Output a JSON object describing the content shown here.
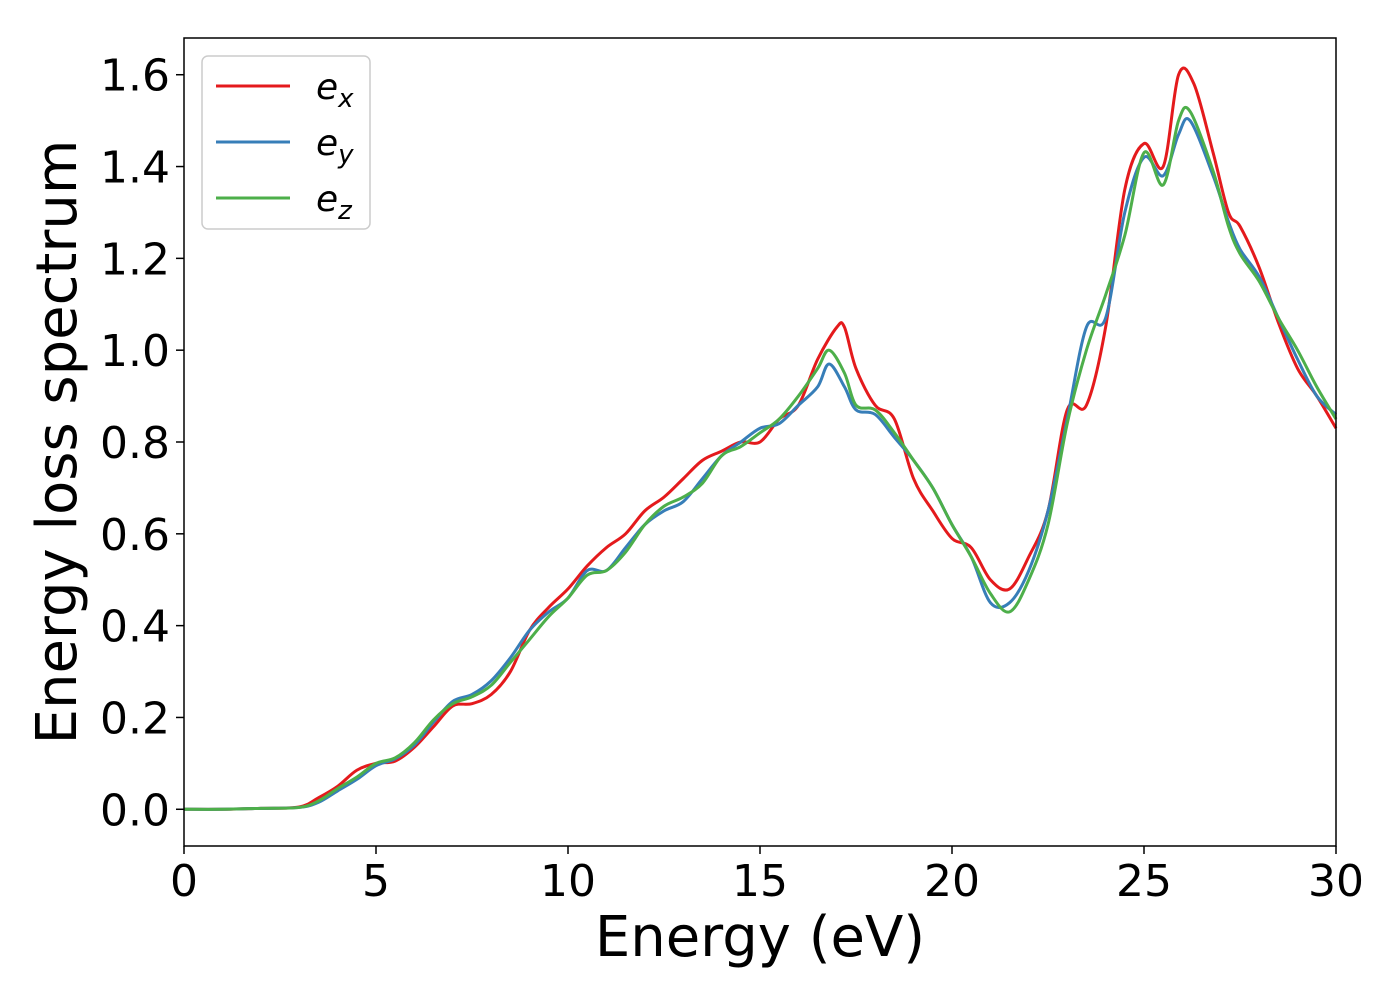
{
  "chart_data": {
    "type": "line",
    "title": "",
    "xlabel": "Energy (eV)",
    "ylabel": "Energy loss spectrum",
    "xlim": [
      0,
      30
    ],
    "ylim": [
      -0.08,
      1.68
    ],
    "xticks": [
      0,
      5,
      10,
      15,
      20,
      25,
      30
    ],
    "yticks": [
      0.0,
      0.2,
      0.4,
      0.6,
      0.8,
      1.0,
      1.2,
      1.4,
      1.6
    ],
    "grid": false,
    "legend_position": "top-left",
    "series": [
      {
        "name": "e",
        "subscript": "x",
        "color": "#e41a1c",
        "x": [
          0,
          1,
          2,
          3,
          3.5,
          4,
          4.5,
          5,
          5.5,
          6,
          6.5,
          7,
          7.5,
          8,
          8.5,
          9,
          9.5,
          10,
          10.5,
          11,
          11.5,
          12,
          12.5,
          13,
          13.5,
          14,
          14.5,
          15,
          15.5,
          16,
          16.5,
          17,
          17.2,
          17.5,
          18,
          18.5,
          19,
          19.5,
          20,
          20.5,
          21,
          21.5,
          22,
          22.5,
          23,
          23.5,
          24,
          24.5,
          25,
          25.5,
          25.9,
          26.3,
          26.8,
          27.2,
          27.5,
          28,
          28.5,
          29,
          29.5,
          30
        ],
        "values": [
          0.0,
          0.0,
          0.002,
          0.005,
          0.025,
          0.05,
          0.085,
          0.1,
          0.105,
          0.135,
          0.18,
          0.225,
          0.23,
          0.25,
          0.3,
          0.39,
          0.44,
          0.48,
          0.53,
          0.57,
          0.6,
          0.65,
          0.68,
          0.72,
          0.76,
          0.78,
          0.8,
          0.8,
          0.85,
          0.88,
          0.98,
          1.05,
          1.05,
          0.96,
          0.88,
          0.85,
          0.72,
          0.65,
          0.59,
          0.57,
          0.5,
          0.48,
          0.55,
          0.65,
          0.87,
          0.88,
          1.05,
          1.35,
          1.45,
          1.4,
          1.6,
          1.58,
          1.43,
          1.3,
          1.27,
          1.18,
          1.06,
          0.96,
          0.9,
          0.83
        ]
      },
      {
        "name": "e",
        "subscript": "y",
        "color": "#377eb8",
        "x": [
          0,
          1,
          2,
          3,
          3.5,
          4,
          4.5,
          5,
          5.5,
          6,
          6.5,
          7,
          7.5,
          8,
          8.5,
          9,
          9.5,
          10,
          10.5,
          11,
          11.5,
          12,
          12.5,
          13,
          13.5,
          14,
          14.5,
          15,
          15.5,
          16,
          16.5,
          16.8,
          17.2,
          17.5,
          18,
          18.5,
          19,
          19.5,
          20,
          20.5,
          21,
          21.5,
          22,
          22.5,
          23,
          23.5,
          24,
          24.5,
          25,
          25.5,
          25.9,
          26.2,
          26.8,
          27.2,
          27.5,
          28,
          28.5,
          29,
          29.5,
          30
        ],
        "values": [
          0.0,
          0.0,
          0.002,
          0.004,
          0.015,
          0.04,
          0.065,
          0.095,
          0.11,
          0.14,
          0.19,
          0.235,
          0.25,
          0.28,
          0.33,
          0.39,
          0.43,
          0.46,
          0.52,
          0.52,
          0.57,
          0.62,
          0.65,
          0.67,
          0.72,
          0.77,
          0.8,
          0.83,
          0.84,
          0.88,
          0.92,
          0.97,
          0.92,
          0.87,
          0.86,
          0.81,
          0.76,
          0.7,
          0.62,
          0.55,
          0.45,
          0.45,
          0.52,
          0.65,
          0.85,
          1.05,
          1.07,
          1.3,
          1.42,
          1.38,
          1.47,
          1.5,
          1.38,
          1.28,
          1.22,
          1.16,
          1.07,
          0.98,
          0.9,
          0.86
        ]
      },
      {
        "name": "e",
        "subscript": "z",
        "color": "#4daf4a",
        "x": [
          0,
          1,
          2,
          3,
          3.5,
          4,
          4.5,
          5,
          5.5,
          6,
          6.5,
          7,
          7.5,
          8,
          8.5,
          9,
          9.5,
          10,
          10.5,
          11,
          11.5,
          12,
          12.5,
          13,
          13.5,
          14,
          14.5,
          15,
          15.5,
          16,
          16.5,
          16.8,
          17.2,
          17.5,
          18,
          18.5,
          19,
          19.5,
          20,
          20.5,
          21,
          21.5,
          22,
          22.5,
          23,
          23.5,
          24,
          24.5,
          25,
          25.5,
          25.9,
          26.2,
          26.8,
          27.2,
          27.5,
          28,
          28.5,
          29,
          29.5,
          30
        ],
        "values": [
          0.0,
          0.0,
          0.002,
          0.004,
          0.018,
          0.045,
          0.07,
          0.1,
          0.112,
          0.145,
          0.195,
          0.23,
          0.245,
          0.27,
          0.32,
          0.37,
          0.42,
          0.46,
          0.51,
          0.52,
          0.56,
          0.62,
          0.66,
          0.68,
          0.71,
          0.77,
          0.79,
          0.82,
          0.85,
          0.9,
          0.96,
          1.0,
          0.95,
          0.88,
          0.87,
          0.82,
          0.76,
          0.7,
          0.62,
          0.55,
          0.47,
          0.43,
          0.5,
          0.62,
          0.84,
          1.0,
          1.12,
          1.25,
          1.43,
          1.36,
          1.5,
          1.52,
          1.39,
          1.27,
          1.21,
          1.15,
          1.07,
          1.0,
          0.92,
          0.85
        ]
      }
    ]
  }
}
